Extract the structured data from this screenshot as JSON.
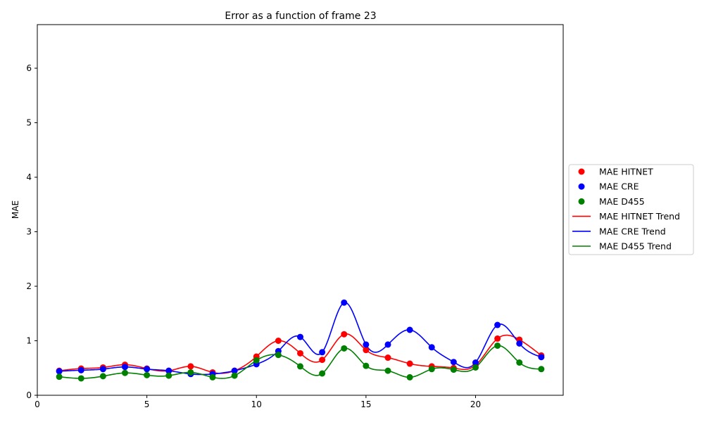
{
  "chart_data": {
    "type": "line",
    "title": "Error as a function of frame 23",
    "xlabel": "",
    "ylabel": "MAE",
    "xlim": [
      0,
      24
    ],
    "ylim": [
      0,
      6.8
    ],
    "xticks": [
      0,
      5,
      10,
      15,
      20
    ],
    "yticks": [
      0,
      1,
      2,
      3,
      4,
      5,
      6
    ],
    "grid": false,
    "legend_position": "right",
    "x": [
      1,
      2,
      3,
      4,
      5,
      6,
      7,
      8,
      9,
      10,
      11,
      12,
      13,
      14,
      15,
      16,
      17,
      18,
      19,
      20,
      21,
      22,
      23
    ],
    "series": [
      {
        "name": "MAE HITNET",
        "color": "#ff0000",
        "values": [
          0.45,
          0.49,
          0.51,
          0.56,
          0.49,
          0.45,
          0.53,
          0.42,
          0.45,
          0.71,
          1.0,
          0.77,
          0.65,
          1.12,
          0.83,
          0.69,
          0.58,
          0.53,
          0.5,
          0.55,
          1.04,
          1.02,
          0.73
        ]
      },
      {
        "name": "MAE CRE",
        "color": "#0000ff",
        "values": [
          0.44,
          0.46,
          0.48,
          0.52,
          0.48,
          0.45,
          0.39,
          0.39,
          0.45,
          0.57,
          0.81,
          1.07,
          0.79,
          1.7,
          0.93,
          0.93,
          1.2,
          0.88,
          0.61,
          0.6,
          1.29,
          0.95,
          0.7
        ]
      },
      {
        "name": "MAE D455",
        "color": "#008000",
        "values": [
          0.34,
          0.31,
          0.35,
          0.41,
          0.37,
          0.36,
          0.42,
          0.33,
          0.36,
          0.64,
          0.74,
          0.53,
          0.4,
          0.86,
          0.54,
          0.45,
          0.33,
          0.48,
          0.47,
          0.51,
          0.91,
          0.6,
          0.48
        ]
      }
    ],
    "trend_legend": [
      "MAE HITNET Trend",
      "MAE CRE Trend",
      "MAE D455 Trend"
    ]
  }
}
